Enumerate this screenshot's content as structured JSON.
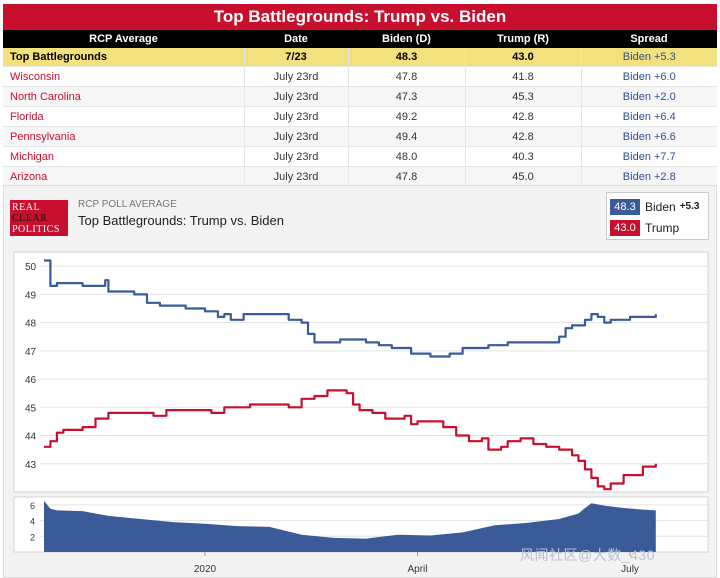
{
  "title": "Top Battlegrounds: Trump vs. Biden",
  "table": {
    "headers": [
      "RCP Average",
      "Date",
      "Biden (D)",
      "Trump (R)",
      "Spread"
    ],
    "average": {
      "state": "Top Battlegrounds",
      "date": "7/23",
      "biden": "48.3",
      "trump": "43.0",
      "spread": "Biden +5.3"
    },
    "rows": [
      {
        "state": "Wisconsin",
        "date": "July 23rd",
        "biden": "47.8",
        "trump": "41.8",
        "spread": "Biden +6.0"
      },
      {
        "state": "North Carolina",
        "date": "July 23rd",
        "biden": "47.3",
        "trump": "45.3",
        "spread": "Biden +2.0"
      },
      {
        "state": "Florida",
        "date": "July 23rd",
        "biden": "49.2",
        "trump": "42.8",
        "spread": "Biden +6.4"
      },
      {
        "state": "Pennsylvania",
        "date": "July 23rd",
        "biden": "49.4",
        "trump": "42.8",
        "spread": "Biden +6.6"
      },
      {
        "state": "Michigan",
        "date": "July 23rd",
        "biden": "48.0",
        "trump": "40.3",
        "spread": "Biden +7.7"
      },
      {
        "state": "Arizona",
        "date": "July 23rd",
        "biden": "47.8",
        "trump": "45.0",
        "spread": "Biden +2.8"
      }
    ]
  },
  "logo": {
    "line1": "REAL",
    "line2": "CLEAR",
    "line3": "POLITICS"
  },
  "chart_header": {
    "subtitle": "RCP POLL AVERAGE",
    "title": "Top Battlegrounds: Trump vs. Biden"
  },
  "legend": {
    "biden": {
      "value": "48.3",
      "name": "Biden",
      "spread": "+5.3",
      "color": "#3a5a98"
    },
    "trump": {
      "value": "43.0",
      "name": "Trump",
      "color": "#c8102e"
    }
  },
  "watermark": "风闻社区@大数_430",
  "chart_data": {
    "type": "line",
    "title": "Top Battlegrounds: Trump vs. Biden",
    "x_range": [
      0,
      100
    ],
    "x_ticks": [
      {
        "label": "2020",
        "x": 25
      },
      {
        "label": "April",
        "x": 58
      },
      {
        "label": "July",
        "x": 91
      }
    ],
    "ylim": [
      42,
      50.5
    ],
    "y_ticks": [
      43,
      44,
      45,
      46,
      47,
      48,
      49,
      50
    ],
    "series": [
      {
        "name": "Biden",
        "color": "#3a5a98",
        "points": [
          [
            0,
            50.2
          ],
          [
            1,
            49.3
          ],
          [
            2,
            49.4
          ],
          [
            5,
            49.4
          ],
          [
            6,
            49.3
          ],
          [
            9,
            49.3
          ],
          [
            9.5,
            49.5
          ],
          [
            10,
            49.1
          ],
          [
            14,
            49.0
          ],
          [
            16,
            48.7
          ],
          [
            18,
            48.6
          ],
          [
            22,
            48.5
          ],
          [
            25,
            48.4
          ],
          [
            27,
            48.2
          ],
          [
            28,
            48.3
          ],
          [
            29,
            48.1
          ],
          [
            31,
            48.3
          ],
          [
            36,
            48.3
          ],
          [
            38,
            48.1
          ],
          [
            40,
            48.0
          ],
          [
            41,
            47.6
          ],
          [
            42,
            47.3
          ],
          [
            45,
            47.3
          ],
          [
            46,
            47.4
          ],
          [
            48,
            47.4
          ],
          [
            50,
            47.3
          ],
          [
            52,
            47.2
          ],
          [
            54,
            47.1
          ],
          [
            56,
            47.1
          ],
          [
            57,
            46.9
          ],
          [
            58,
            46.9
          ],
          [
            60,
            46.8
          ],
          [
            63,
            46.9
          ],
          [
            65,
            47.1
          ],
          [
            67,
            47.1
          ],
          [
            69,
            47.2
          ],
          [
            72,
            47.3
          ],
          [
            74,
            47.3
          ],
          [
            77,
            47.3
          ],
          [
            80,
            47.5
          ],
          [
            81,
            47.8
          ],
          [
            82,
            47.9
          ],
          [
            84,
            48.1
          ],
          [
            85,
            48.3
          ],
          [
            86,
            48.2
          ],
          [
            87,
            48.0
          ],
          [
            88,
            48.1
          ],
          [
            91,
            48.2
          ],
          [
            93,
            48.2
          ],
          [
            95,
            48.3
          ]
        ]
      },
      {
        "name": "Trump",
        "color": "#c8102e",
        "points": [
          [
            0,
            43.6
          ],
          [
            1,
            43.8
          ],
          [
            2,
            44.1
          ],
          [
            3,
            44.2
          ],
          [
            6,
            44.3
          ],
          [
            8,
            44.6
          ],
          [
            10,
            44.8
          ],
          [
            16,
            44.8
          ],
          [
            17,
            44.7
          ],
          [
            19,
            44.9
          ],
          [
            23,
            44.9
          ],
          [
            26,
            44.8
          ],
          [
            28,
            45.0
          ],
          [
            32,
            45.1
          ],
          [
            35,
            45.1
          ],
          [
            38,
            45.0
          ],
          [
            40,
            45.3
          ],
          [
            42,
            45.4
          ],
          [
            44,
            45.6
          ],
          [
            46,
            45.6
          ],
          [
            47,
            45.5
          ],
          [
            48,
            45.1
          ],
          [
            49,
            44.9
          ],
          [
            51,
            44.8
          ],
          [
            53,
            44.6
          ],
          [
            56,
            44.7
          ],
          [
            57,
            44.4
          ],
          [
            58,
            44.5
          ],
          [
            61,
            44.5
          ],
          [
            62,
            44.3
          ],
          [
            64,
            44.0
          ],
          [
            66,
            43.8
          ],
          [
            68,
            43.9
          ],
          [
            69,
            43.5
          ],
          [
            71,
            43.6
          ],
          [
            72,
            43.8
          ],
          [
            74,
            43.9
          ],
          [
            76,
            43.7
          ],
          [
            78,
            43.6
          ],
          [
            80,
            43.5
          ],
          [
            82,
            43.3
          ],
          [
            83,
            43.1
          ],
          [
            84,
            42.8
          ],
          [
            85,
            42.5
          ],
          [
            86,
            42.2
          ],
          [
            87,
            42.1
          ],
          [
            88,
            42.3
          ],
          [
            90,
            42.6
          ],
          [
            92,
            42.6
          ],
          [
            93,
            42.9
          ],
          [
            95,
            43.0
          ]
        ]
      },
      {
        "name": "Spread",
        "color": "#3a5a98",
        "ylim": [
          0,
          7
        ],
        "y_ticks": [
          2,
          4,
          6
        ],
        "points": [
          [
            0,
            6.5
          ],
          [
            1,
            5.5
          ],
          [
            2,
            5.3
          ],
          [
            6,
            5.2
          ],
          [
            10,
            4.6
          ],
          [
            15,
            4.2
          ],
          [
            20,
            3.8
          ],
          [
            25,
            3.6
          ],
          [
            30,
            3.3
          ],
          [
            35,
            3.2
          ],
          [
            40,
            2.2
          ],
          [
            45,
            1.8
          ],
          [
            50,
            1.7
          ],
          [
            55,
            2.2
          ],
          [
            60,
            2.1
          ],
          [
            65,
            2.5
          ],
          [
            70,
            3.4
          ],
          [
            75,
            3.7
          ],
          [
            80,
            4.2
          ],
          [
            83,
            4.9
          ],
          [
            84,
            5.6
          ],
          [
            85,
            6.2
          ],
          [
            87,
            5.9
          ],
          [
            90,
            5.6
          ],
          [
            93,
            5.4
          ],
          [
            95,
            5.3
          ]
        ]
      }
    ]
  }
}
